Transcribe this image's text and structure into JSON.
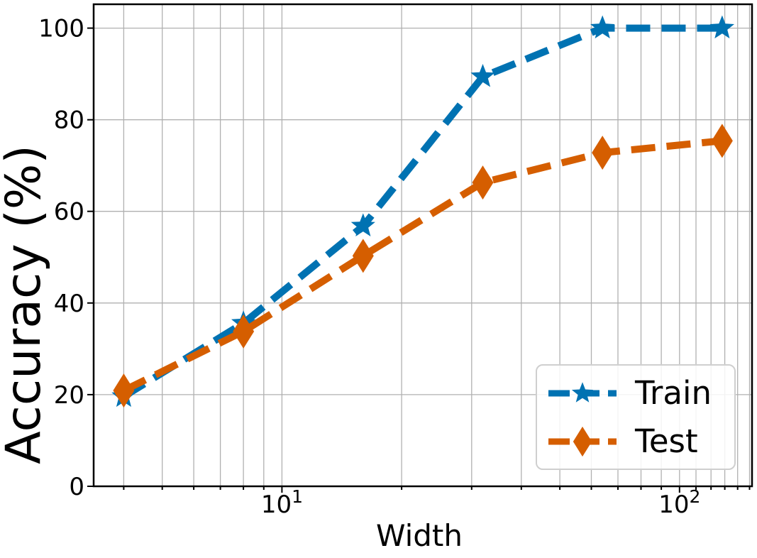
{
  "figure": {
    "background": "#ffffff"
  },
  "chart_data": {
    "type": "line",
    "xscale": "log",
    "title": "",
    "xlabel": "Width",
    "ylabel": "Accuracy (%)",
    "xlim": [
      3.36,
      152.2
    ],
    "ylim": [
      0,
      105.2
    ],
    "grid": true,
    "grid_color": "#b0b0b0",
    "axis_color": "#000000",
    "x": [
      4,
      8,
      16,
      32,
      64,
      128
    ],
    "series": [
      {
        "name": "Train",
        "color": "#0072B2",
        "marker": "star",
        "linestyle": "dashed",
        "values": [
          19.6,
          35.6,
          56.8,
          89.4,
          100.0,
          100.0
        ]
      },
      {
        "name": "Test",
        "color": "#D55E00",
        "marker": "thin-diamond",
        "linestyle": "dashed",
        "values": [
          20.9,
          33.8,
          50.3,
          66.3,
          72.8,
          75.4
        ]
      }
    ],
    "yticks": [
      {
        "value": 0,
        "label": "0"
      },
      {
        "value": 20,
        "label": "20"
      },
      {
        "value": 40,
        "label": "40"
      },
      {
        "value": 60,
        "label": "60"
      },
      {
        "value": 80,
        "label": "80"
      },
      {
        "value": 100,
        "label": "100"
      }
    ],
    "xticks_major": [
      {
        "value": 10,
        "base": "10",
        "exponent": "1"
      },
      {
        "value": 100,
        "base": "10",
        "exponent": "2"
      }
    ],
    "xticks_minor": [
      4,
      5,
      6,
      7,
      8,
      9,
      20,
      30,
      40,
      50,
      60,
      70,
      80,
      90,
      110,
      120,
      130,
      140,
      150
    ],
    "legend": {
      "position": "lower right"
    }
  }
}
